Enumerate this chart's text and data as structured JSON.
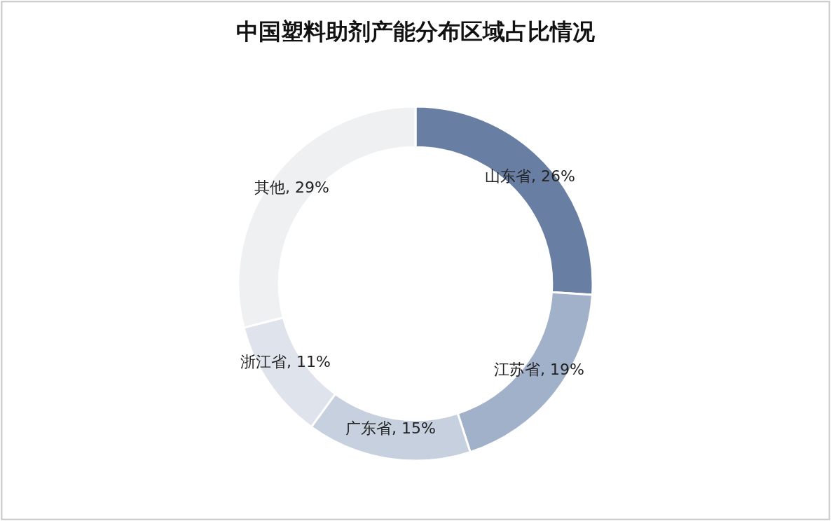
{
  "chart_data": {
    "type": "donut",
    "title": "中国塑料助剂产能分布区域占比情况",
    "categories": [
      "山东省, 26%",
      "江苏省, 19%",
      "广东省, 15%",
      "浙江省, 11%",
      "其他, 29%"
    ],
    "values": [
      26,
      19,
      15,
      11,
      29
    ],
    "colors": [
      "#687ea3",
      "#a2b1ca",
      "#c6d0df",
      "#dfe4ec",
      "#eff0f2"
    ],
    "legend": false
  }
}
